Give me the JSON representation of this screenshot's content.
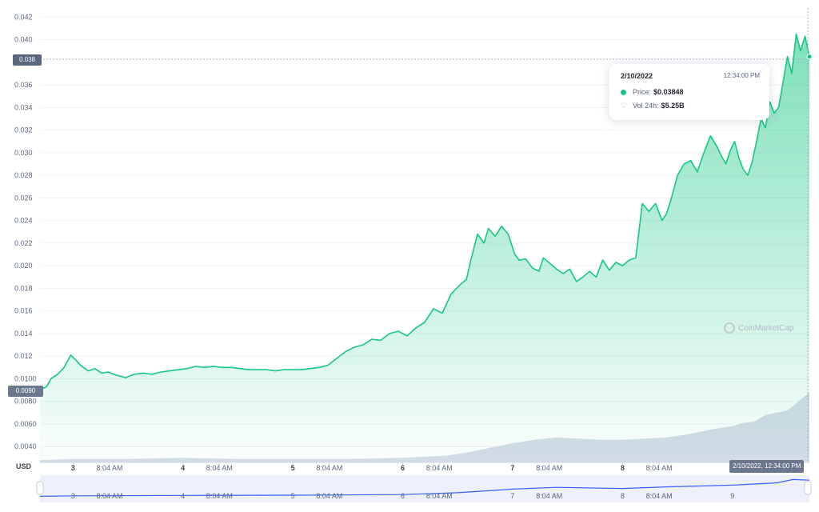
{
  "chart_data": {
    "type": "area",
    "currency_label": "USD",
    "y_ticks": [
      "0.0040",
      "0.0060",
      "0.0080",
      "0.0100",
      "0.012",
      "0.014",
      "0.016",
      "0.018",
      "0.020",
      "0.022",
      "0.024",
      "0.026",
      "0.028",
      "0.030",
      "0.032",
      "0.034",
      "0.036",
      "0.038",
      "0.040",
      "0.042"
    ],
    "y_tick_values": [
      0.004,
      0.006,
      0.008,
      0.01,
      0.012,
      0.014,
      0.016,
      0.018,
      0.02,
      0.022,
      0.024,
      0.026,
      0.028,
      0.03,
      0.032,
      0.034,
      0.036,
      0.038,
      0.04,
      0.042
    ],
    "ylim": [
      0.0026,
      0.0428
    ],
    "x_ticks": [
      "3",
      "8:04 AM",
      "4",
      "8:04 AM",
      "5",
      "8:04 AM",
      "6",
      "8:04 AM",
      "7",
      "8:04 AM",
      "8",
      "8:04 AM",
      "9"
    ],
    "x_tick_positions": [
      1.0,
      1.333,
      2.0,
      2.333,
      3.0,
      3.333,
      4.0,
      4.333,
      5.0,
      5.333,
      6.0,
      6.333,
      7.0
    ],
    "xlim": [
      0.7,
      7.7
    ],
    "series": [
      {
        "x": [
          0.7,
          0.76,
          0.8,
          0.86,
          0.92,
          0.98,
          1.02,
          1.08,
          1.14,
          1.2,
          1.26,
          1.32,
          1.4,
          1.48,
          1.56,
          1.64,
          1.72,
          1.8,
          1.88,
          1.96,
          2.04,
          2.12,
          2.2,
          2.28,
          2.36,
          2.44,
          2.52,
          2.6,
          2.68,
          2.76,
          2.84,
          2.92,
          3.0,
          3.08,
          3.16,
          3.24,
          3.32,
          3.4,
          3.48,
          3.56,
          3.64,
          3.72,
          3.8,
          3.88,
          3.96,
          4.04,
          4.12,
          4.2,
          4.28,
          4.36,
          4.44,
          4.52,
          4.58,
          4.62,
          4.68,
          4.74,
          4.78,
          4.84,
          4.9,
          4.96,
          5.02,
          5.06,
          5.12,
          5.18,
          5.24,
          5.28,
          5.34,
          5.4,
          5.46,
          5.52,
          5.58,
          5.64,
          5.7,
          5.76,
          5.82,
          5.88,
          5.94,
          6.0,
          6.06,
          6.12,
          6.18,
          6.24,
          6.3,
          6.36,
          6.4,
          6.44,
          6.5,
          6.56,
          6.62,
          6.68,
          6.74,
          6.8,
          6.86,
          6.9,
          6.94,
          6.98,
          7.02,
          7.06,
          7.1,
          7.14,
          7.18,
          7.22,
          7.26,
          7.3,
          7.34,
          7.38,
          7.42,
          7.46,
          7.5,
          7.54,
          7.58,
          7.62,
          7.66,
          7.7
        ],
        "y": [
          0.009,
          0.0093,
          0.01,
          0.0104,
          0.011,
          0.0121,
          0.0117,
          0.0111,
          0.0107,
          0.0109,
          0.0105,
          0.0106,
          0.0103,
          0.0101,
          0.0104,
          0.0105,
          0.0104,
          0.0106,
          0.0107,
          0.0108,
          0.0109,
          0.0111,
          0.011,
          0.0111,
          0.011,
          0.011,
          0.0109,
          0.0108,
          0.0108,
          0.0108,
          0.0107,
          0.0108,
          0.0108,
          0.0108,
          0.0109,
          0.011,
          0.0112,
          0.0118,
          0.0124,
          0.0128,
          0.013,
          0.0135,
          0.0134,
          0.014,
          0.0142,
          0.0138,
          0.0145,
          0.015,
          0.0162,
          0.0158,
          0.0175,
          0.0183,
          0.0188,
          0.0205,
          0.0228,
          0.022,
          0.0233,
          0.0226,
          0.0235,
          0.0228,
          0.021,
          0.0205,
          0.0206,
          0.0198,
          0.0195,
          0.0207,
          0.0202,
          0.0197,
          0.0193,
          0.0197,
          0.0186,
          0.019,
          0.0195,
          0.019,
          0.0205,
          0.0196,
          0.0203,
          0.02,
          0.0205,
          0.0207,
          0.0255,
          0.0248,
          0.0255,
          0.024,
          0.0246,
          0.0258,
          0.028,
          0.029,
          0.0293,
          0.0283,
          0.03,
          0.0315,
          0.0305,
          0.0297,
          0.029,
          0.0302,
          0.031,
          0.0295,
          0.0285,
          0.028,
          0.0292,
          0.031,
          0.033,
          0.0322,
          0.0345,
          0.0335,
          0.034,
          0.0362,
          0.0385,
          0.037,
          0.0405,
          0.039,
          0.0403,
          0.0385
        ]
      }
    ],
    "volume": {
      "x": [
        0.7,
        1.0,
        1.5,
        2.0,
        2.5,
        3.0,
        3.5,
        4.0,
        4.4,
        4.6,
        4.8,
        5.0,
        5.2,
        5.4,
        5.6,
        5.8,
        6.0,
        6.2,
        6.4,
        6.6,
        6.8,
        7.0,
        7.1,
        7.2,
        7.3,
        7.4,
        7.5,
        7.6,
        7.7
      ],
      "y": [
        0.0028,
        0.0029,
        0.0029,
        0.003,
        0.0029,
        0.0029,
        0.0029,
        0.003,
        0.0032,
        0.0035,
        0.0039,
        0.0043,
        0.0046,
        0.0048,
        0.0047,
        0.0046,
        0.0046,
        0.0047,
        0.0048,
        0.0051,
        0.0055,
        0.0058,
        0.0061,
        0.0062,
        0.0068,
        0.007,
        0.0072,
        0.008,
        0.0088
      ]
    },
    "navigator": {
      "x": [
        0.7,
        1.0,
        2.0,
        3.0,
        4.0,
        4.5,
        5.0,
        5.4,
        6.0,
        6.4,
        7.0,
        7.4,
        7.55,
        7.7
      ],
      "y": [
        0.2,
        0.22,
        0.24,
        0.25,
        0.28,
        0.36,
        0.52,
        0.6,
        0.55,
        0.62,
        0.7,
        0.8,
        0.95,
        0.92
      ]
    },
    "current_price_label": "0.038",
    "low_label": "0.0090",
    "timestamp_label": "2/10/2022, 12:34:00 PM",
    "tooltip": {
      "date": "2/10/2022",
      "time": "12:34:00 PM",
      "price_label": "Price:",
      "price_value": "$0.03848",
      "vol_label": "Vol 24h:",
      "vol_value": "$5.25B"
    },
    "watermark": "CoinMarketCap",
    "colors": {
      "line": "#16c784",
      "area_top": "#16c784",
      "volume": "#cfd6e4",
      "grid": "#eff2f5",
      "navigator_bg": "#eef1fb",
      "navigator_line": "#3861fb"
    },
    "grid": true
  }
}
